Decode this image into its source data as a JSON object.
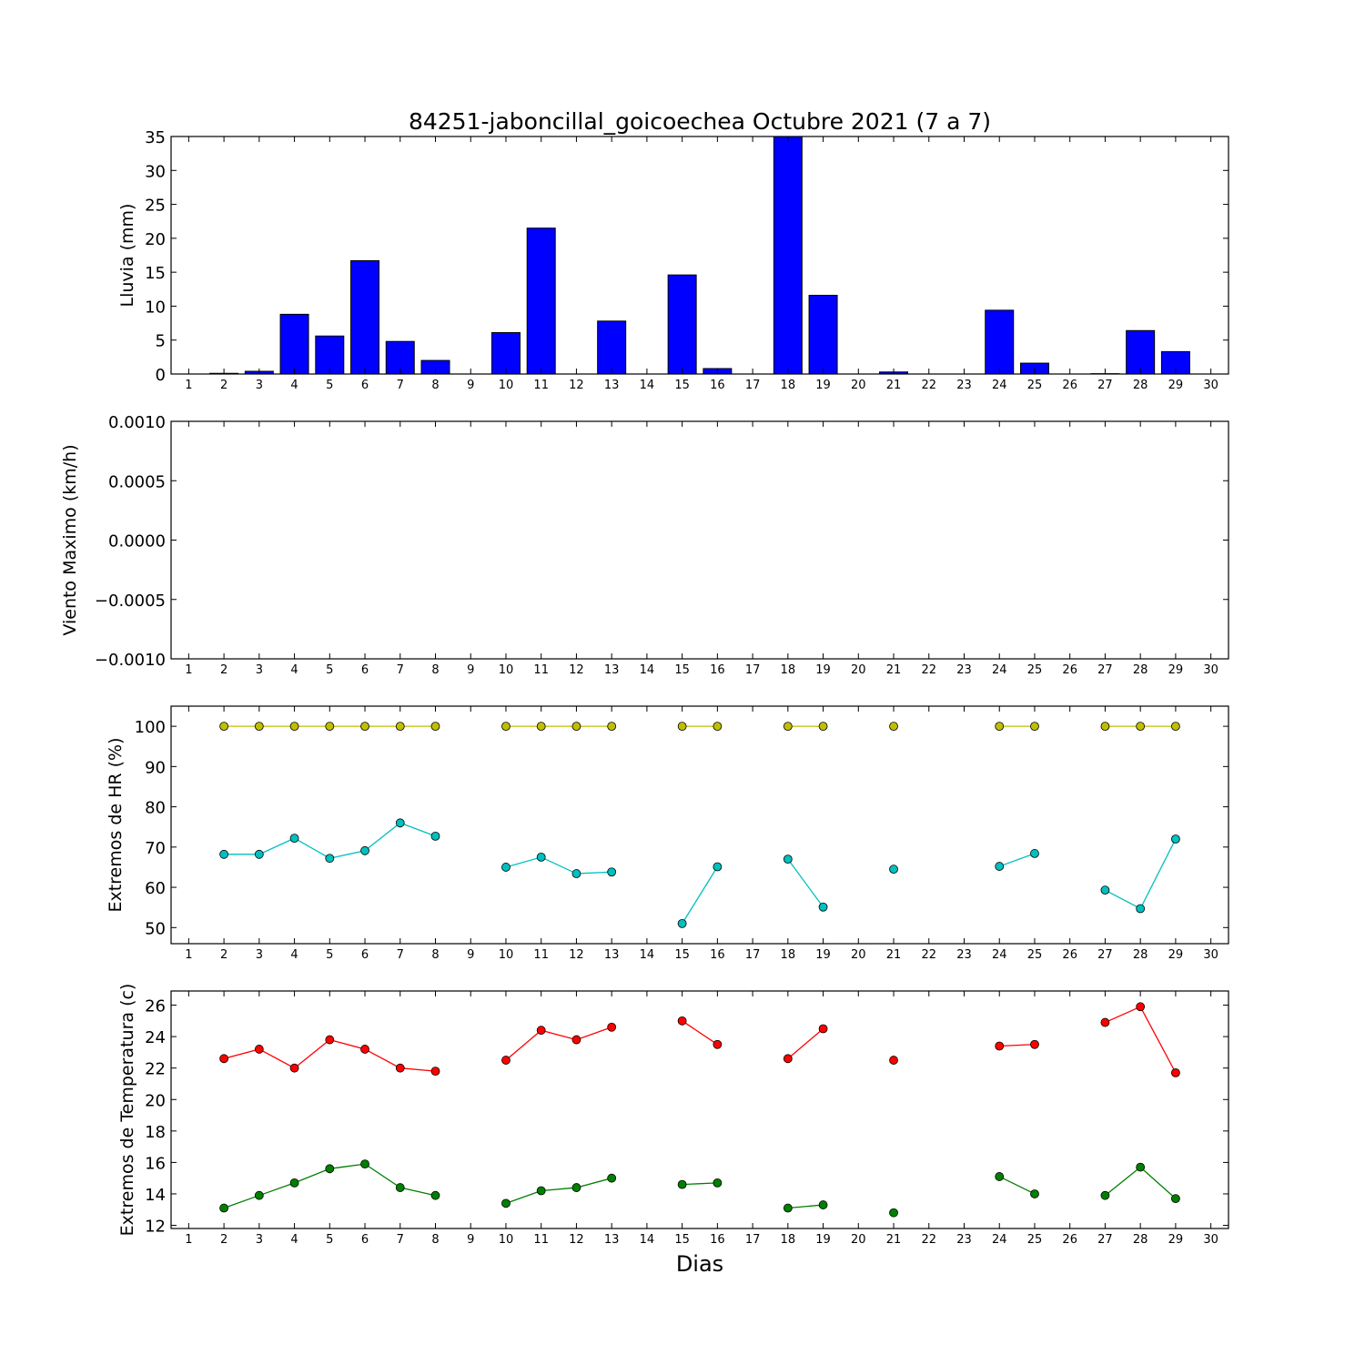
{
  "figure": {
    "title": "84251-jaboncillal_goicoechea Octubre 2021  (7 a 7)",
    "xlabel": "Dias"
  },
  "chart_data": [
    {
      "type": "bar",
      "ylabel": "Lluvia (mm)",
      "xlim": [
        0.5,
        30.5
      ],
      "ylim": [
        0,
        35
      ],
      "yticks": [
        "0",
        "5",
        "10",
        "15",
        "20",
        "25",
        "30",
        "35"
      ],
      "ytick_values": [
        0,
        5,
        10,
        15,
        20,
        25,
        30,
        35
      ],
      "xticks": [
        1,
        2,
        3,
        4,
        5,
        6,
        7,
        8,
        9,
        10,
        11,
        12,
        13,
        14,
        15,
        16,
        17,
        18,
        19,
        20,
        21,
        22,
        23,
        24,
        25,
        26,
        27,
        28,
        29,
        30
      ],
      "bar_color": "#0000ff",
      "x": [
        2,
        3,
        4,
        5,
        6,
        7,
        8,
        10,
        11,
        13,
        15,
        16,
        18,
        19,
        21,
        24,
        25,
        27,
        28,
        29
      ],
      "values": [
        0.1,
        0.4,
        8.8,
        5.6,
        16.7,
        4.8,
        2.0,
        6.1,
        21.5,
        7.8,
        14.6,
        0.8,
        35,
        11.6,
        0.3,
        9.4,
        1.6,
        0.05,
        6.4,
        3.3
      ]
    },
    {
      "type": "line",
      "ylabel": "Viento Maximo (km/h)",
      "xlim": [
        0.5,
        30.5
      ],
      "ylim": [
        -0.001,
        0.001
      ],
      "yticks": [
        "0.0010",
        "0.0005",
        "0.0000",
        "−0.0005",
        "−0.0010"
      ],
      "ytick_values": [
        0.001,
        0.0005,
        0,
        -0.0005,
        -0.001
      ],
      "xticks": [
        1,
        2,
        3,
        4,
        5,
        6,
        7,
        8,
        9,
        10,
        11,
        12,
        13,
        14,
        15,
        16,
        17,
        18,
        19,
        20,
        21,
        22,
        23,
        24,
        25,
        26,
        27,
        28,
        29,
        30
      ],
      "series": []
    },
    {
      "type": "line",
      "ylabel": "Extremos de HR (%)",
      "xlim": [
        0.5,
        30.5
      ],
      "ylim": [
        46,
        105
      ],
      "yticks": [
        "50",
        "60",
        "70",
        "80",
        "90",
        "100"
      ],
      "ytick_values": [
        50,
        60,
        70,
        80,
        90,
        100
      ],
      "xticks": [
        1,
        2,
        3,
        4,
        5,
        6,
        7,
        8,
        9,
        10,
        11,
        12,
        13,
        14,
        15,
        16,
        17,
        18,
        19,
        20,
        21,
        22,
        23,
        24,
        25,
        26,
        27,
        28,
        29,
        30
      ],
      "series": [
        {
          "color": "#bfbf00",
          "x": [
            2,
            3,
            4,
            5,
            6,
            7,
            8,
            null,
            10,
            11,
            12,
            13,
            null,
            15,
            16,
            null,
            18,
            19,
            null,
            21,
            null,
            24,
            25,
            null,
            27,
            28,
            29
          ],
          "values": [
            100,
            100,
            100,
            100,
            100,
            100,
            100,
            null,
            100,
            100,
            100,
            100,
            null,
            100,
            100,
            null,
            100,
            100,
            null,
            100,
            null,
            100,
            100,
            null,
            100,
            100,
            100
          ]
        },
        {
          "color": "#00bfbf",
          "x": [
            2,
            3,
            4,
            5,
            6,
            7,
            8,
            null,
            10,
            11,
            12,
            13,
            null,
            15,
            16,
            null,
            18,
            19,
            null,
            21,
            null,
            24,
            25,
            null,
            27,
            28,
            29
          ],
          "values": [
            68.2,
            68.2,
            72.2,
            67.2,
            69.1,
            76,
            72.7,
            null,
            65,
            67.5,
            63.4,
            63.8,
            null,
            51,
            65.1,
            null,
            67,
            55.1,
            null,
            64.5,
            null,
            65.2,
            68.4,
            null,
            59.3,
            54.7,
            72
          ]
        }
      ]
    },
    {
      "type": "line",
      "ylabel": "Extremos de Temperatura (c)",
      "xlim": [
        0.5,
        30.5
      ],
      "ylim": [
        11.8,
        26.9
      ],
      "yticks": [
        "12",
        "14",
        "16",
        "18",
        "20",
        "22",
        "24",
        "26"
      ],
      "ytick_values": [
        12,
        14,
        16,
        18,
        20,
        22,
        24,
        26
      ],
      "xticks": [
        1,
        2,
        3,
        4,
        5,
        6,
        7,
        8,
        9,
        10,
        11,
        12,
        13,
        14,
        15,
        16,
        17,
        18,
        19,
        20,
        21,
        22,
        23,
        24,
        25,
        26,
        27,
        28,
        29,
        30
      ],
      "series": [
        {
          "color": "#ff0000",
          "x": [
            2,
            3,
            4,
            5,
            6,
            7,
            8,
            null,
            10,
            11,
            12,
            13,
            null,
            15,
            16,
            null,
            18,
            19,
            null,
            21,
            null,
            24,
            25,
            null,
            27,
            28,
            29
          ],
          "values": [
            22.6,
            23.2,
            22,
            23.8,
            23.2,
            22,
            21.8,
            null,
            22.5,
            24.4,
            23.8,
            24.6,
            null,
            25,
            23.5,
            null,
            22.6,
            24.5,
            null,
            22.5,
            null,
            23.4,
            23.5,
            null,
            24.9,
            25.9,
            21.7
          ]
        },
        {
          "color": "#008000",
          "x": [
            2,
            3,
            4,
            5,
            6,
            7,
            8,
            null,
            10,
            11,
            12,
            13,
            null,
            15,
            16,
            null,
            18,
            19,
            null,
            21,
            null,
            24,
            25,
            null,
            27,
            28,
            29
          ],
          "values": [
            13.1,
            13.9,
            14.7,
            15.6,
            15.9,
            14.4,
            13.9,
            null,
            13.4,
            14.2,
            14.4,
            15,
            null,
            14.6,
            14.7,
            null,
            13.1,
            13.3,
            null,
            12.8,
            null,
            15.1,
            14,
            null,
            13.9,
            15.7,
            13.7
          ]
        }
      ]
    }
  ]
}
